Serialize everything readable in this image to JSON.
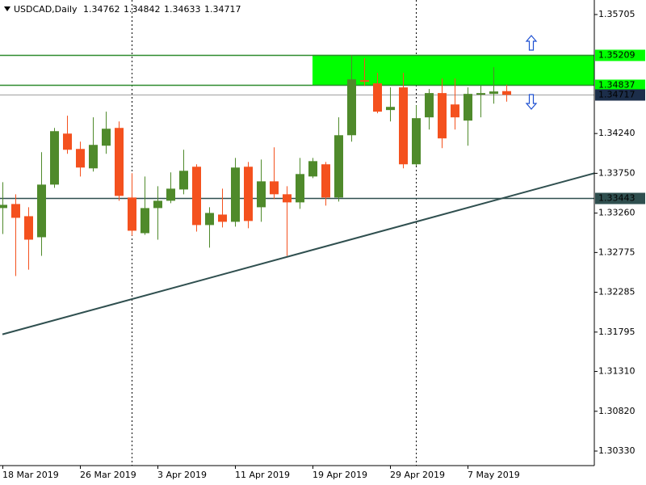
{
  "chart_data": {
    "type": "candlestick",
    "symbol": "USDCAD,Daily",
    "categories": [
      "18 Mar 2019",
      null,
      null,
      null,
      null,
      null,
      "26 Mar 2019",
      null,
      null,
      null,
      null,
      null,
      "3 Apr 2019",
      null,
      null,
      null,
      null,
      null,
      "11 Apr 2019",
      null,
      null,
      null,
      null,
      null,
      "19 Apr 2019",
      null,
      null,
      null,
      null,
      null,
      "29 Apr 2019",
      null,
      null,
      null,
      null,
      null,
      "7 May 2019",
      null,
      null,
      null
    ],
    "open": [
      1.33322,
      1.33372,
      1.33222,
      1.32963,
      1.33611,
      1.34239,
      1.3405,
      1.33811,
      1.3409,
      1.34309,
      1.33452,
      1.33013,
      1.33322,
      1.33412,
      1.33551,
      1.33831,
      1.33113,
      1.33242,
      1.33153,
      1.33831,
      1.33332,
      1.33651,
      1.33492,
      1.33392,
      1.33711,
      1.33861,
      1.33452,
      1.34219,
      1.34897,
      1.34858,
      1.34529,
      1.34808,
      1.33861,
      1.34439,
      1.34738,
      1.34598,
      1.34399,
      1.34718,
      1.34728,
      1.34762
    ],
    "high": [
      1.33641,
      1.33492,
      1.33332,
      1.3401,
      1.34309,
      1.34459,
      1.3414,
      1.34439,
      1.34509,
      1.34389,
      1.33751,
      1.33711,
      1.33591,
      1.33761,
      1.3404,
      1.33861,
      1.33332,
      1.33561,
      1.3394,
      1.3389,
      1.3392,
      1.3407,
      1.33591,
      1.3394,
      1.3394,
      1.3389,
      1.34439,
      1.35207,
      1.35167,
      1.34987,
      1.34808,
      1.34987,
      1.34588,
      1.34788,
      1.34917,
      1.34917,
      1.34808,
      1.34828,
      1.35057,
      1.34842
    ],
    "low": [
      1.33003,
      1.32485,
      1.32564,
      1.32734,
      1.33571,
      1.3399,
      1.33711,
      1.33771,
      1.3399,
      1.33412,
      1.32983,
      1.32993,
      1.32933,
      1.33382,
      1.33492,
      1.33033,
      1.32834,
      1.33083,
      1.33093,
      1.33073,
      1.33153,
      1.33432,
      1.32734,
      1.33312,
      1.33691,
      1.33352,
      1.33402,
      1.3414,
      1.34828,
      1.34489,
      1.34389,
      1.33811,
      1.33841,
      1.34289,
      1.3406,
      1.34289,
      1.3409,
      1.34439,
      1.34608,
      1.34633
    ],
    "close": [
      1.33362,
      1.33202,
      1.32933,
      1.33611,
      1.34269,
      1.3404,
      1.33821,
      1.341,
      1.34299,
      1.33472,
      1.33043,
      1.33322,
      1.33412,
      1.33561,
      1.33781,
      1.33113,
      1.33262,
      1.33153,
      1.33821,
      1.33163,
      1.33651,
      1.33492,
      1.33392,
      1.33741,
      1.339,
      1.33452,
      1.34219,
      1.34907,
      1.34878,
      1.34509,
      1.34568,
      1.33861,
      1.34429,
      1.34738,
      1.3418,
      1.34439,
      1.34728,
      1.34738,
      1.34758,
      1.34717
    ],
    "up_color": "#4f8a2b",
    "down_color": "#f4511e",
    "ylim": [
      1.30151,
      1.35884
    ],
    "yticks": [
      1.35705,
      {
        "value": 1.3424,
        "label": "1.34240"
      },
      {
        "value": 1.3375,
        "label": "1.33750"
      },
      {
        "value": 1.3326,
        "label": "1.33260"
      },
      1.32775,
      1.32285,
      1.31795,
      {
        "value": 1.3131,
        "label": "1.31310"
      },
      {
        "value": 1.3082,
        "label": "1.30820"
      },
      {
        "value": 1.3033,
        "label": "1.30330"
      }
    ],
    "levels": [
      {
        "value": 1.35209,
        "color": "#2e8b2e",
        "label_color": "#00ff00",
        "text_color": "#000000"
      },
      {
        "value": 1.34837,
        "color": "#2e8b2e",
        "label_color": "#00ff00",
        "text_color": "#000000"
      },
      {
        "value": 1.33443,
        "color": "#2f4f4f",
        "label_color": "#2f4f4f",
        "text_color": "#ffffff"
      }
    ],
    "zone": {
      "start": 24,
      "color": "#00ff00"
    },
    "bid_color": "#a0a0a0",
    "bid_label_color": "#1c2e4a",
    "trendline": {
      "x": [
        0,
        45.81
      ],
      "y": [
        1.31767,
        1.33751
      ],
      "color": "#2f4f4f"
    },
    "separators": [
      10,
      32
    ]
  }
}
